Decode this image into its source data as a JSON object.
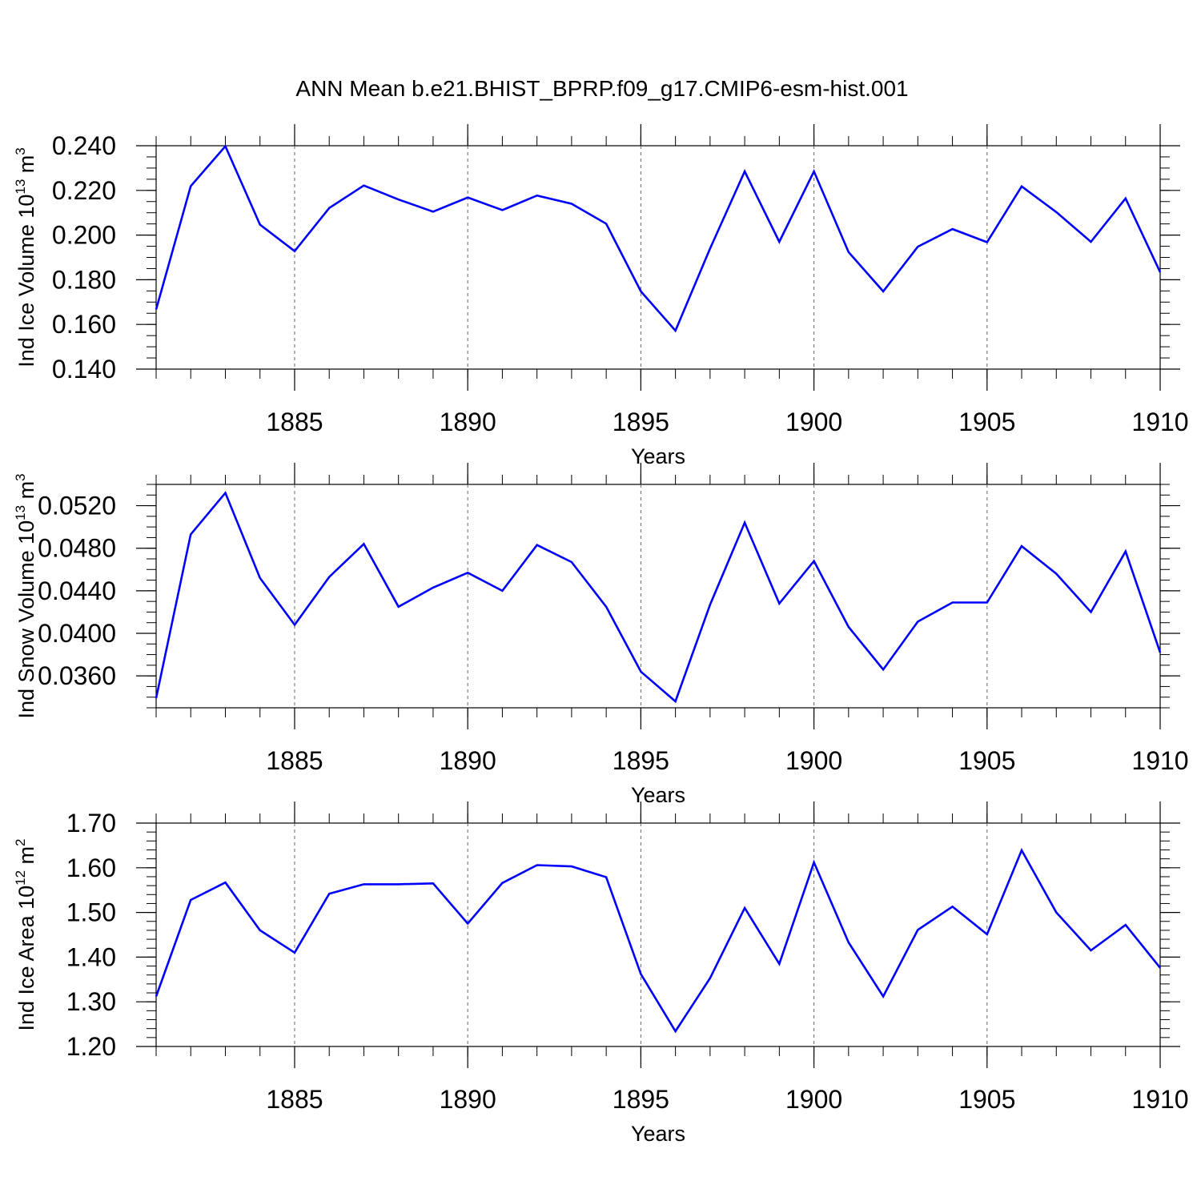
{
  "title": "ANN Mean b.e21.BHIST_BPRP.f09_g17.CMIP6-esm-hist.001",
  "colors": {
    "line": "#0000ff",
    "axes": "#000000",
    "grid": "#666666"
  },
  "chart_data": [
    {
      "type": "line",
      "ylabel": {
        "main": "Ind Ice Volume 10",
        "sup": "13",
        "mid": " m",
        "sup2": "3"
      },
      "xlabel": "Years",
      "xlim": [
        1881,
        1910
      ],
      "ylim": [
        0.14,
        0.24
      ],
      "yticks": [
        "0.240",
        "0.220",
        "0.200",
        "0.180",
        "0.160",
        "0.140"
      ],
      "ytick_values": [
        0.24,
        0.22,
        0.2,
        0.18,
        0.16,
        0.14
      ],
      "yminor_step": 0.005,
      "xticks": [
        "1885",
        "1890",
        "1895",
        "1900",
        "1905",
        "1910"
      ],
      "xtick_values": [
        1885,
        1890,
        1895,
        1900,
        1905,
        1910
      ],
      "grid_x": [
        1885,
        1890,
        1895,
        1900,
        1905
      ],
      "x": [
        1881,
        1882,
        1883,
        1884,
        1885,
        1886,
        1887,
        1888,
        1889,
        1890,
        1891,
        1892,
        1893,
        1894,
        1895,
        1896,
        1897,
        1898,
        1899,
        1900,
        1901,
        1902,
        1903,
        1904,
        1905,
        1906,
        1907,
        1908,
        1909,
        1910
      ],
      "values": [
        0.1667,
        0.2219,
        0.2398,
        0.2047,
        0.1928,
        0.2121,
        0.2222,
        0.2159,
        0.2105,
        0.2168,
        0.2112,
        0.2177,
        0.214,
        0.2051,
        0.1748,
        0.1572,
        0.194,
        0.2285,
        0.197,
        0.2285,
        0.1924,
        0.1748,
        0.1948,
        0.2027,
        0.1968,
        0.2218,
        0.2103,
        0.197,
        0.2164,
        0.1834
      ]
    },
    {
      "type": "line",
      "ylabel": {
        "main": "Ind Snow Volume 10",
        "sup": "13",
        "mid": " m",
        "sup2": "3"
      },
      "xlabel": "Years",
      "xlim": [
        1881,
        1910
      ],
      "ylim": [
        0.033,
        0.054
      ],
      "yticks": [
        "0.0520",
        "0.0480",
        "0.0440",
        "0.0400",
        "0.0360"
      ],
      "ytick_values": [
        0.052,
        0.048,
        0.044,
        0.04,
        0.036
      ],
      "yminor_step": 0.001,
      "xticks": [
        "1885",
        "1890",
        "1895",
        "1900",
        "1905",
        "1910"
      ],
      "xtick_values": [
        1885,
        1890,
        1895,
        1900,
        1905,
        1910
      ],
      "grid_x": [
        1885,
        1890,
        1895,
        1900,
        1905
      ],
      "x": [
        1881,
        1882,
        1883,
        1884,
        1885,
        1886,
        1887,
        1888,
        1889,
        1890,
        1891,
        1892,
        1893,
        1894,
        1895,
        1896,
        1897,
        1898,
        1899,
        1900,
        1901,
        1902,
        1903,
        1904,
        1905,
        1906,
        1907,
        1908,
        1909,
        1910
      ],
      "values": [
        0.0339,
        0.0493,
        0.0532,
        0.0452,
        0.0408,
        0.0453,
        0.0484,
        0.0425,
        0.0443,
        0.0457,
        0.044,
        0.0483,
        0.0467,
        0.0425,
        0.0364,
        0.0336,
        0.0427,
        0.0504,
        0.0428,
        0.0468,
        0.0406,
        0.0366,
        0.0411,
        0.0429,
        0.0429,
        0.0482,
        0.0456,
        0.042,
        0.0477,
        0.0382
      ]
    },
    {
      "type": "line",
      "ylabel": {
        "main": "Ind Ice Area 10",
        "sup": "12",
        "mid": " m",
        "sup2": "2"
      },
      "xlabel": "Years",
      "xlim": [
        1881,
        1910
      ],
      "ylim": [
        1.2,
        1.7
      ],
      "yticks": [
        "1.70",
        "1.60",
        "1.50",
        "1.40",
        "1.30",
        "1.20"
      ],
      "ytick_values": [
        1.7,
        1.6,
        1.5,
        1.4,
        1.3,
        1.2
      ],
      "yminor_step": 0.02,
      "xticks": [
        "1885",
        "1890",
        "1895",
        "1900",
        "1905",
        "1910"
      ],
      "xtick_values": [
        1885,
        1890,
        1895,
        1900,
        1905,
        1910
      ],
      "grid_x": [
        1885,
        1890,
        1895,
        1900,
        1905
      ],
      "x": [
        1881,
        1882,
        1883,
        1884,
        1885,
        1886,
        1887,
        1888,
        1889,
        1890,
        1891,
        1892,
        1893,
        1894,
        1895,
        1896,
        1897,
        1898,
        1899,
        1900,
        1901,
        1902,
        1903,
        1904,
        1905,
        1906,
        1907,
        1908,
        1909,
        1910
      ],
      "values": [
        1.312,
        1.528,
        1.567,
        1.46,
        1.41,
        1.542,
        1.563,
        1.563,
        1.565,
        1.475,
        1.566,
        1.606,
        1.603,
        1.579,
        1.362,
        1.234,
        1.353,
        1.51,
        1.385,
        1.612,
        1.433,
        1.312,
        1.461,
        1.513,
        1.451,
        1.639,
        1.5,
        1.415,
        1.472,
        1.376
      ]
    }
  ]
}
